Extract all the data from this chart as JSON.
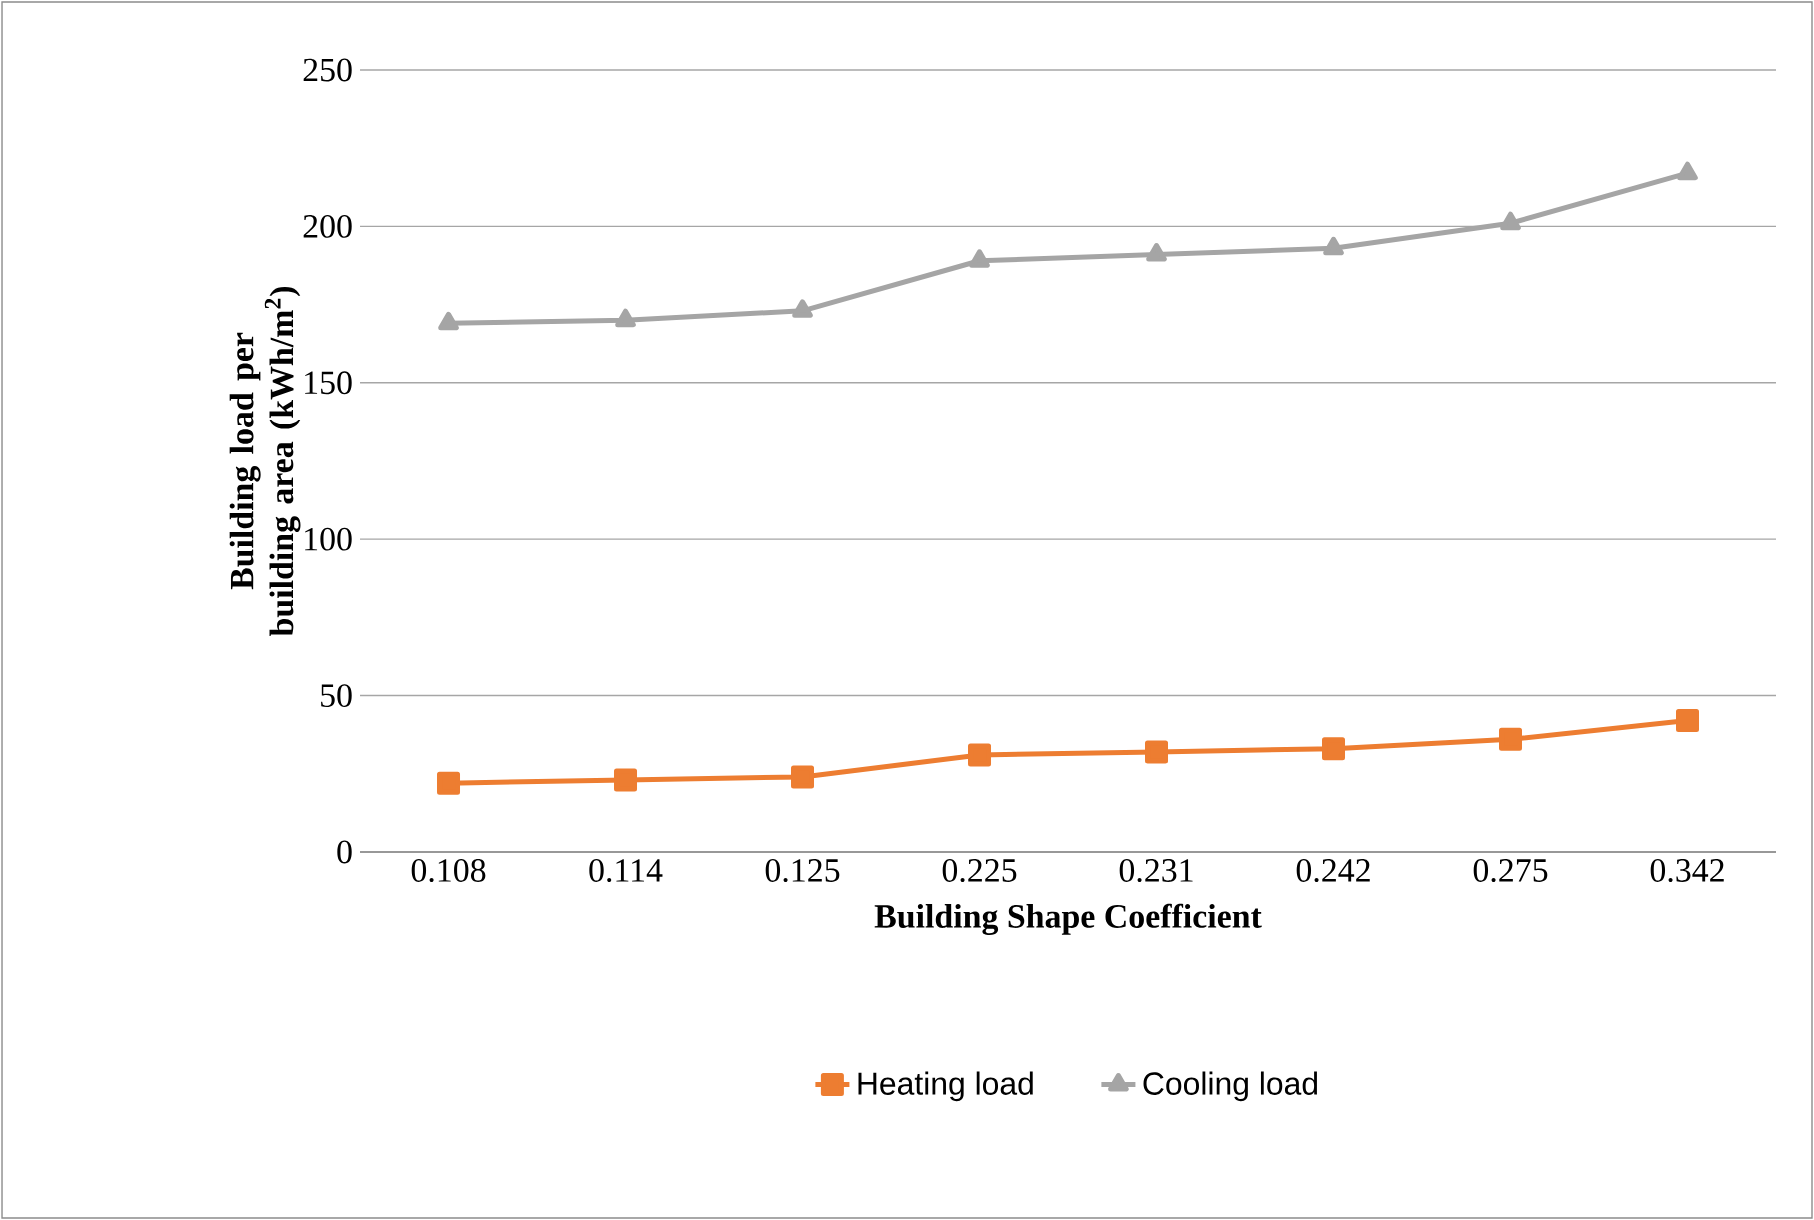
{
  "chart_data": {
    "type": "line",
    "xlabel": "Building Shape Coefficient",
    "ylabel": "Building  load per building area (kWh/m$^{2}$)",
    "categories": [
      "0.108",
      "0.114",
      "0.125",
      "0.225",
      "0.231",
      "0.242",
      "0.275",
      "0.342"
    ],
    "series": [
      {
        "name": "Heating load",
        "color": "#ed7d31",
        "marker": "square",
        "values": [
          22,
          23,
          24,
          31,
          32,
          33,
          36,
          42
        ]
      },
      {
        "name": "Cooling load",
        "color": "#a5a5a5",
        "marker": "triangle",
        "values": [
          169,
          170,
          173,
          189,
          191,
          193,
          201,
          217
        ]
      }
    ],
    "ylim": [
      0,
      250
    ],
    "yticks": [
      0,
      50,
      100,
      150,
      200,
      250
    ],
    "grid": "y",
    "legend": "bottom",
    "line_style": "solid"
  }
}
